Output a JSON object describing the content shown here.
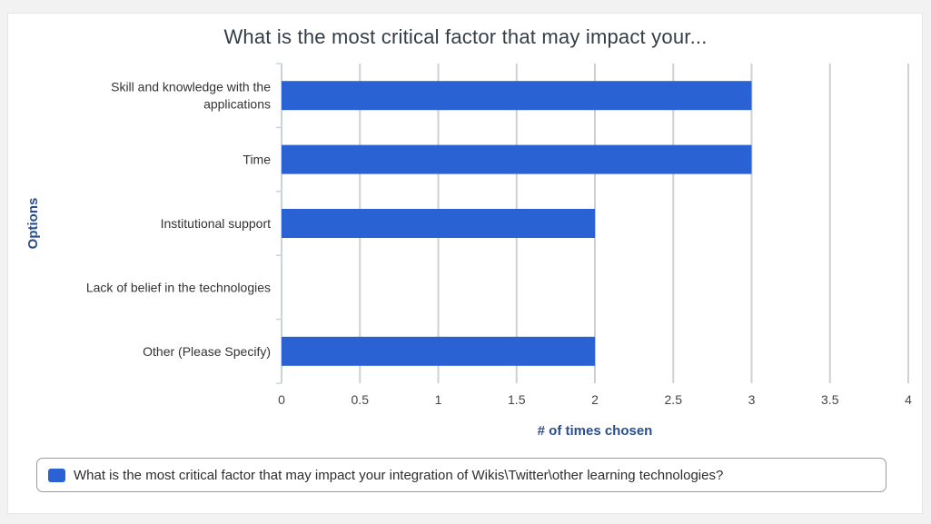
{
  "chart_data": {
    "type": "bar",
    "orientation": "horizontal",
    "title": "What is the most critical factor that may impact your...",
    "xlabel": "# of times chosen",
    "ylabel": "Options",
    "categories": [
      [
        "Skill and knowledge with the",
        "applications"
      ],
      [
        "Time"
      ],
      [
        "Institutional support"
      ],
      [
        "Lack of belief in the technologies"
      ],
      [
        "Other (Please Specify)"
      ]
    ],
    "series": [
      {
        "name": "What is the most critical factor that may impact your integration of Wikis\\Twitter\\other learning technologies?",
        "values": [
          3,
          3,
          2,
          0,
          2
        ],
        "color": "#2a62d3"
      }
    ],
    "xlim": [
      0,
      4
    ],
    "xticks": [
      "0",
      "0.5",
      "1",
      "1.5",
      "2",
      "2.5",
      "3",
      "3.5",
      "4"
    ],
    "grid": true,
    "legend_position": "bottom"
  },
  "colors": {
    "bar": "#2a62d3",
    "axis_title": "#2b4f8c",
    "grid": "#d0d0d0",
    "text": "#333333"
  }
}
